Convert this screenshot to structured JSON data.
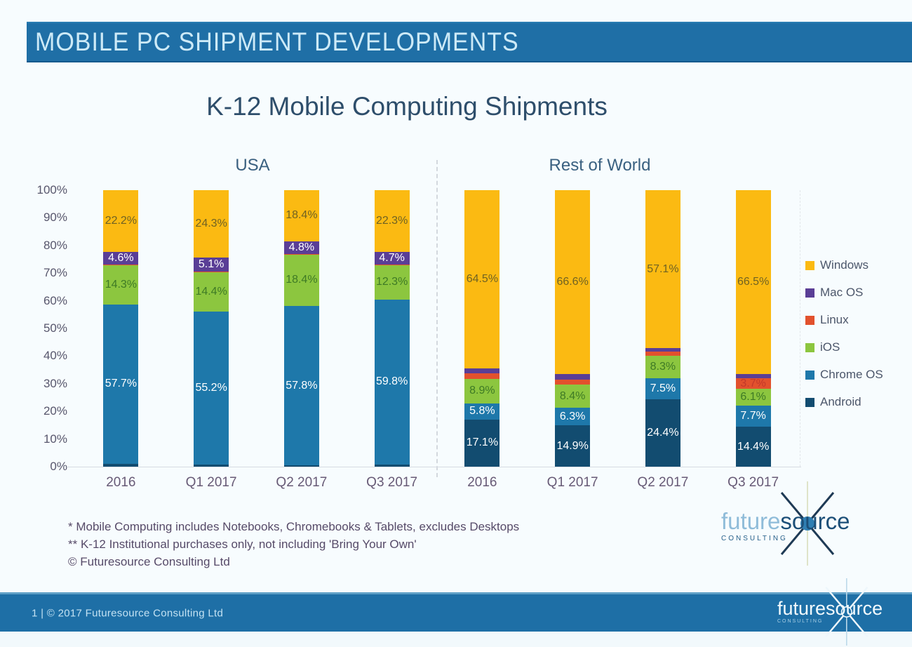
{
  "header": {
    "title": "MOBILE PC SHIPMENT DEVELOPMENTS"
  },
  "chart_data": {
    "type": "bar",
    "stacked": true,
    "title": "K-12 Mobile Computing Shipments",
    "group_labels": {
      "usa": "USA",
      "row": "Rest of World"
    },
    "ylim": [
      0,
      100
    ],
    "y_ticks": [
      "0%",
      "10%",
      "20%",
      "30%",
      "40%",
      "50%",
      "60%",
      "70%",
      "80%",
      "90%",
      "100%"
    ],
    "legend_position": "right",
    "legend": [
      "Windows",
      "Mac OS",
      "Linux",
      "iOS",
      "Chrome OS",
      "Android"
    ],
    "colors": {
      "Windows": "#fbba12",
      "Mac OS": "#5a3e96",
      "Linux": "#e2512d",
      "iOS": "#8cc63f",
      "Chrome OS": "#1e78aa",
      "Android": "#124c70"
    },
    "label_colors": {
      "Windows": "#6f6223",
      "Mac OS": "#ffffff",
      "Linux": "#c2392b",
      "iOS": "#3e7a25",
      "Chrome OS": "#ffffff",
      "Android": "#ffffff"
    },
    "bars": [
      {
        "group": "USA",
        "category": "2016",
        "segments": [
          {
            "os": "Android",
            "value": 1.0
          },
          {
            "os": "Chrome OS",
            "value": 57.7,
            "label": "57.7%"
          },
          {
            "os": "iOS",
            "value": 14.3,
            "label": "14.3%"
          },
          {
            "os": "Linux",
            "value": 0.2
          },
          {
            "os": "Mac OS",
            "value": 4.6,
            "label": "4.6%"
          },
          {
            "os": "Windows",
            "value": 22.2,
            "label": "22.2%"
          }
        ]
      },
      {
        "group": "USA",
        "category": "Q1 2017",
        "segments": [
          {
            "os": "Android",
            "value": 0.8
          },
          {
            "os": "Chrome OS",
            "value": 55.2,
            "label": "55.2%"
          },
          {
            "os": "iOS",
            "value": 14.4,
            "label": "14.4%"
          },
          {
            "os": "Linux",
            "value": 0.2
          },
          {
            "os": "Mac OS",
            "value": 5.1,
            "label": "5.1%"
          },
          {
            "os": "Windows",
            "value": 24.3,
            "label": "24.3%"
          }
        ]
      },
      {
        "group": "USA",
        "category": "Q2 2017",
        "segments": [
          {
            "os": "Android",
            "value": 0.4
          },
          {
            "os": "Chrome OS",
            "value": 57.8,
            "label": "57.8%"
          },
          {
            "os": "iOS",
            "value": 18.4,
            "label": "18.4%"
          },
          {
            "os": "Linux",
            "value": 0.2
          },
          {
            "os": "Mac OS",
            "value": 4.8,
            "label": "4.8%"
          },
          {
            "os": "Windows",
            "value": 18.4,
            "label": "18.4%"
          }
        ]
      },
      {
        "group": "USA",
        "category": "Q3 2017",
        "segments": [
          {
            "os": "Android",
            "value": 0.7
          },
          {
            "os": "Chrome OS",
            "value": 59.8,
            "label": "59.8%"
          },
          {
            "os": "iOS",
            "value": 12.3,
            "label": "12.3%"
          },
          {
            "os": "Linux",
            "value": 0.2
          },
          {
            "os": "Mac OS",
            "value": 4.7,
            "label": "4.7%"
          },
          {
            "os": "Windows",
            "value": 22.3,
            "label": "22.3%"
          }
        ]
      },
      {
        "group": "Rest of World",
        "category": "2016",
        "segments": [
          {
            "os": "Android",
            "value": 17.1,
            "label": "17.1%"
          },
          {
            "os": "Chrome OS",
            "value": 5.8,
            "label": "5.8%"
          },
          {
            "os": "iOS",
            "value": 8.9,
            "label": "8.9%"
          },
          {
            "os": "Linux",
            "value": 1.9
          },
          {
            "os": "Mac OS",
            "value": 1.8
          },
          {
            "os": "Windows",
            "value": 64.5,
            "label": "64.5%"
          }
        ]
      },
      {
        "group": "Rest of World",
        "category": "Q1 2017",
        "segments": [
          {
            "os": "Android",
            "value": 14.9,
            "label": "14.9%"
          },
          {
            "os": "Chrome OS",
            "value": 6.3,
            "label": "6.3%"
          },
          {
            "os": "iOS",
            "value": 8.4,
            "label": "8.4%"
          },
          {
            "os": "Linux",
            "value": 2.0
          },
          {
            "os": "Mac OS",
            "value": 1.8
          },
          {
            "os": "Windows",
            "value": 66.6,
            "label": "66.6%"
          }
        ]
      },
      {
        "group": "Rest of World",
        "category": "Q2 2017",
        "segments": [
          {
            "os": "Android",
            "value": 24.4,
            "label": "24.4%"
          },
          {
            "os": "Chrome OS",
            "value": 7.5,
            "label": "7.5%"
          },
          {
            "os": "iOS",
            "value": 8.3,
            "label": "8.3%"
          },
          {
            "os": "Linux",
            "value": 1.5
          },
          {
            "os": "Mac OS",
            "value": 1.2
          },
          {
            "os": "Windows",
            "value": 57.1,
            "label": "57.1%"
          }
        ]
      },
      {
        "group": "Rest of World",
        "category": "Q3 2017",
        "segments": [
          {
            "os": "Android",
            "value": 14.4,
            "label": "14.4%"
          },
          {
            "os": "Chrome OS",
            "value": 7.7,
            "label": "7.7%"
          },
          {
            "os": "iOS",
            "value": 6.1,
            "label": "6.1%"
          },
          {
            "os": "Linux",
            "value": 3.7,
            "label": "3.7%"
          },
          {
            "os": "Mac OS",
            "value": 1.6
          },
          {
            "os": "Windows",
            "value": 66.5,
            "label": "66.5%"
          }
        ]
      }
    ]
  },
  "footnotes": {
    "line1": "* Mobile Computing includes Notebooks, Chromebooks & Tablets, excludes Desktops",
    "line2": "** K-12 Institutional purchases only, not including 'Bring Your Own'",
    "line3": "© Futuresource Consulting Ltd"
  },
  "logo": {
    "part1": "future",
    "part2": "source",
    "sub": "CONSULTING"
  },
  "footer": {
    "left": "1  |  © 2017 Futuresource Consulting Ltd"
  }
}
